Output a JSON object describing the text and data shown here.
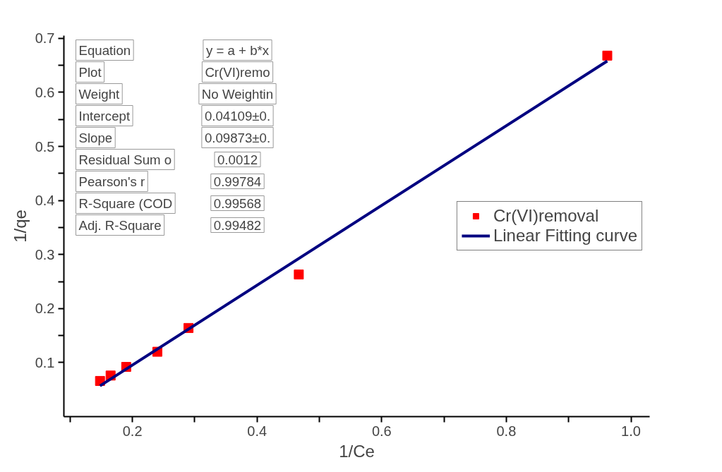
{
  "chart_data": {
    "type": "scatter",
    "xlabel": "1/Ce",
    "ylabel": "1/qe",
    "xlim": [
      0.09,
      1.03
    ],
    "ylim": [
      0.0,
      0.705
    ],
    "xticks": [
      {
        "value": 0.1,
        "label": null
      },
      0.2,
      {
        "value": 0.3,
        "label": null
      },
      0.4,
      {
        "value": 0.5,
        "label": null
      },
      0.6,
      {
        "value": 0.7,
        "label": null
      },
      0.8,
      {
        "value": 0.9,
        "label": null
      },
      {
        "value": 1.0,
        "label": "1.0"
      }
    ],
    "yticks": [
      0.1,
      {
        "value": 0.15,
        "label": null
      },
      0.2,
      {
        "value": 0.25,
        "label": null
      },
      0.3,
      {
        "value": 0.35,
        "label": null
      },
      0.4,
      {
        "value": 0.45,
        "label": null
      },
      0.5,
      {
        "value": 0.55,
        "label": null
      },
      0.6,
      {
        "value": 0.65,
        "label": null
      },
      0.7
    ],
    "legend": "right",
    "grid": false,
    "series": [
      {
        "name": "Cr(VI)removal",
        "type": "scatter",
        "marker": "square",
        "color": "#ff0000",
        "x": [
          0.148,
          0.165,
          0.19,
          0.24,
          0.29,
          0.467,
          0.962
        ],
        "values": [
          0.066,
          0.076,
          0.092,
          0.12,
          0.164,
          0.263,
          0.668
        ]
      },
      {
        "name": "Linear Fitting curve",
        "type": "line",
        "line_style": "solid",
        "color": "#000080",
        "x": [
          0.148,
          0.962
        ],
        "values": [
          0.057,
          0.658
        ]
      }
    ],
    "annotations": [
      "Equation",
      "y = a + b*x",
      "Plot",
      "Cr(VI)remo",
      "Weight",
      "No Weightin",
      "Intercept",
      "0.04109±0.",
      "Slope",
      "0.09873±0.",
      "Residual Sum o",
      "0.0012",
      "Pearson's r",
      "0.99784",
      "R-Square (COD",
      "0.99568",
      "Adj. R-Square",
      "0.99482"
    ]
  }
}
